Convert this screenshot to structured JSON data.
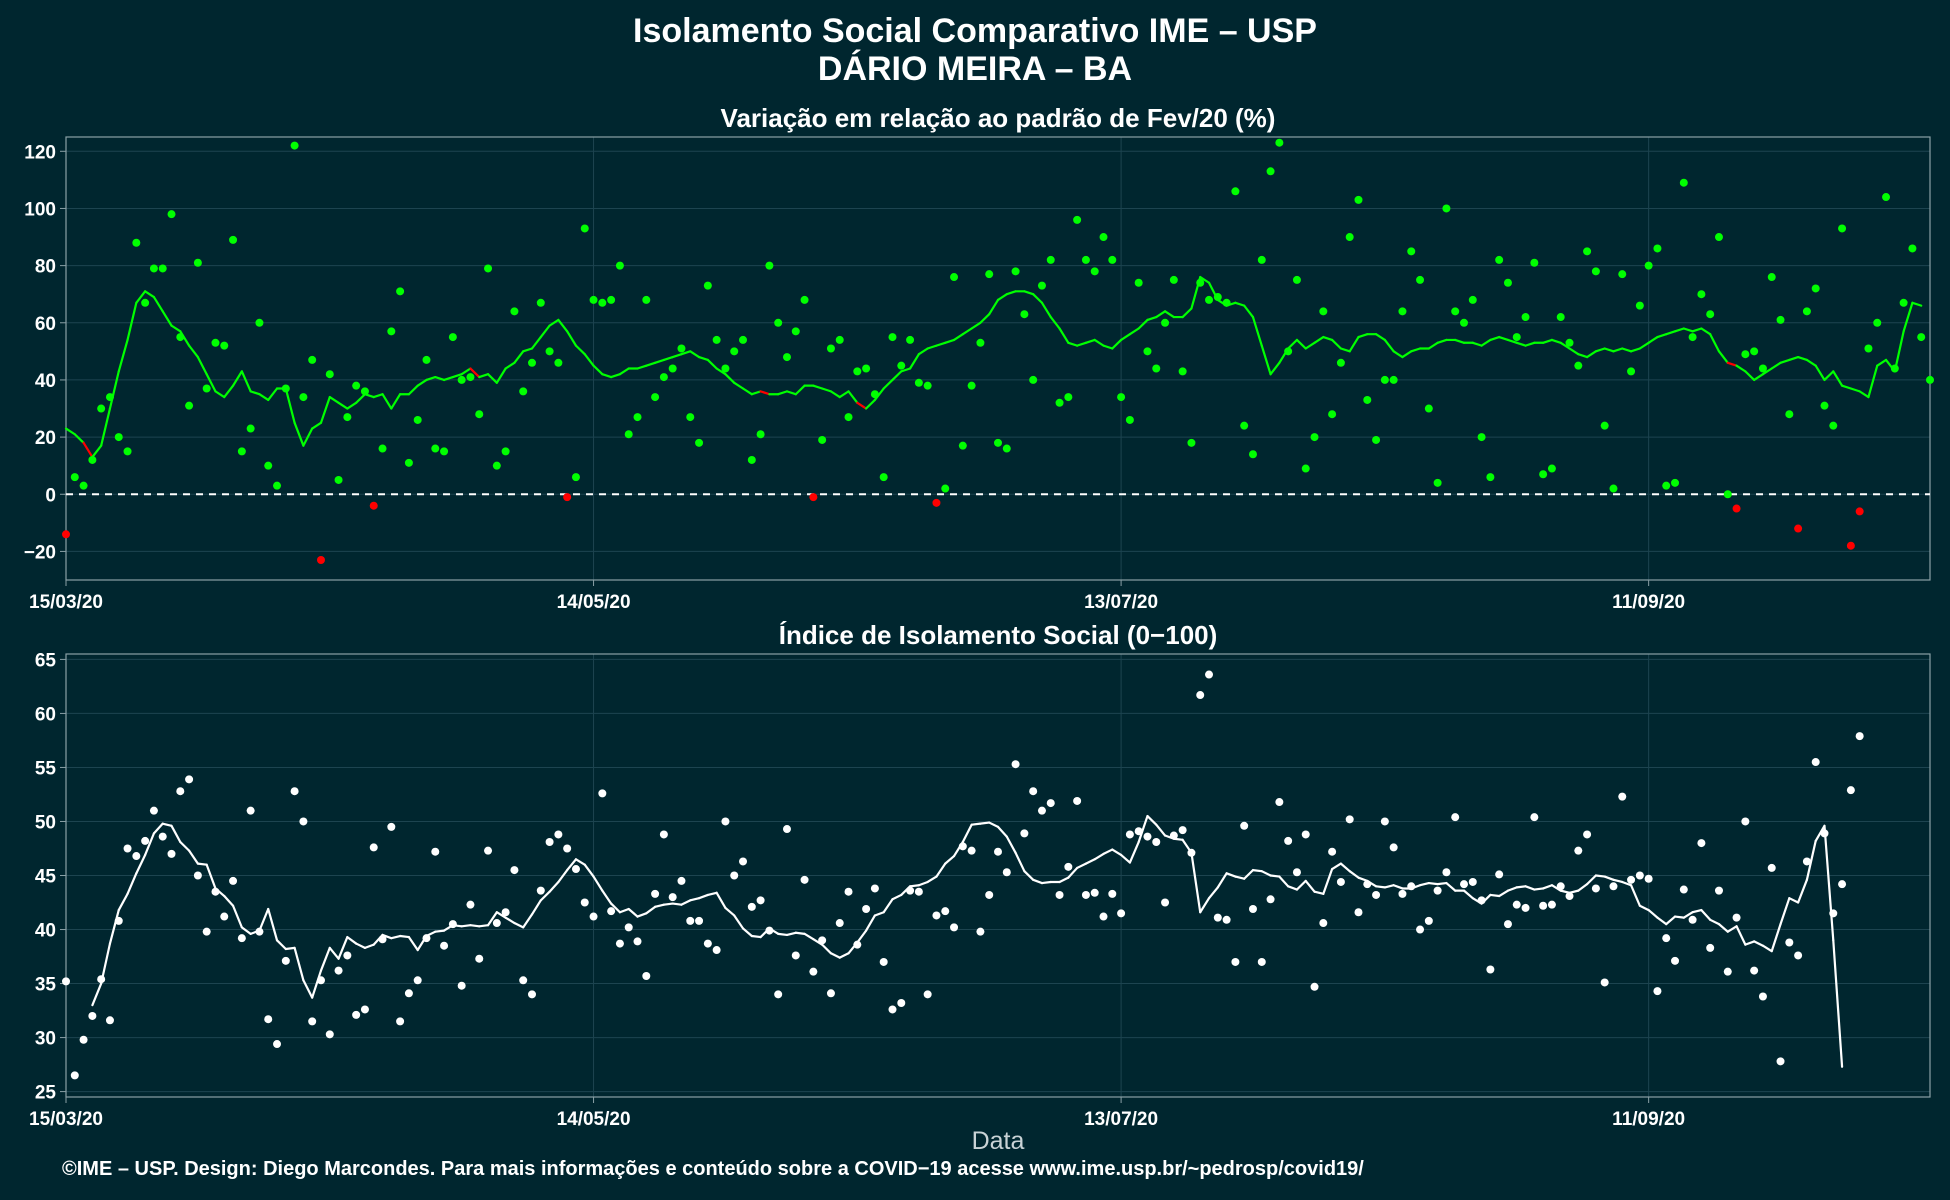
{
  "title": "Isolamento Social Comparativo IME – USP",
  "subtitle": "DÁRIO MEIRA – BA",
  "footer": "©IME – USP. Design: Diego Marcondes. Para mais informações e conteúdo sobre a COVID−19 acesse www.ime.usp.br/~pedrosp/covid19/",
  "colors": {
    "background": "#00262f",
    "positive": "#00ff00",
    "negative": "#ff0000",
    "index": "#ffffff",
    "grid": "#1d4450",
    "axis": "#8aa0a6"
  },
  "chart_data": [
    {
      "type": "scatter",
      "title": "Variação em relação ao padrão de Fev/20 (%)",
      "xlabel": "",
      "ylabel": "",
      "x_tick_labels": [
        "15/03/20",
        "14/05/20",
        "13/07/20",
        "11/09/20"
      ],
      "x_tick_days": [
        0,
        60,
        120,
        180
      ],
      "y_ticks": [
        -20,
        0,
        20,
        40,
        60,
        80,
        100,
        120
      ],
      "xlim": [
        0,
        212
      ],
      "ylim": [
        -30,
        125
      ],
      "reference_line": 0,
      "points": [
        -14,
        6,
        3,
        12,
        30,
        34,
        20,
        15,
        88,
        67,
        79,
        79,
        98,
        55,
        31,
        81,
        37,
        53,
        52,
        89,
        15,
        23,
        60,
        10,
        3,
        37,
        122,
        34,
        47,
        -23,
        42,
        5,
        27,
        38,
        36,
        -4,
        16,
        57,
        71,
        11,
        26,
        47,
        16,
        15,
        55,
        40,
        41,
        28,
        79,
        10,
        15,
        64,
        36,
        46,
        67,
        50,
        46,
        -1,
        6,
        93,
        68,
        67,
        68,
        80,
        21,
        27,
        68,
        34,
        41,
        44,
        51,
        27,
        18,
        73,
        54,
        44,
        50,
        54,
        12,
        21,
        80,
        60,
        48,
        57,
        68,
        -1,
        19,
        51,
        54,
        27,
        43,
        44,
        35,
        6,
        55,
        45,
        54,
        39,
        38,
        -3,
        2,
        76,
        17,
        38,
        53,
        77,
        18,
        16,
        78,
        63,
        40,
        73,
        82,
        32,
        34,
        96,
        82,
        78,
        90,
        82,
        34,
        26,
        74,
        50,
        44,
        60,
        75,
        43,
        18,
        74,
        68,
        69,
        67,
        106,
        24,
        14,
        82,
        113,
        123,
        50,
        75,
        9,
        20,
        64,
        28,
        46,
        90,
        103,
        33,
        19,
        40,
        40,
        64,
        85,
        75,
        30,
        4,
        100,
        64,
        60,
        68,
        20,
        6,
        82,
        74,
        55,
        62,
        81,
        7,
        9,
        62,
        53,
        45,
        85,
        78,
        24,
        2,
        77,
        43,
        66,
        80,
        86,
        3,
        4,
        109,
        55,
        70,
        63,
        90,
        0,
        -5,
        49,
        50,
        44,
        76,
        61,
        28,
        -12,
        64,
        72,
        31,
        24,
        93,
        -18,
        -6,
        51,
        60,
        104,
        44,
        67,
        86,
        55,
        40
      ],
      "moving_average": [
        23,
        21,
        18,
        13,
        17,
        30,
        43,
        54,
        67,
        71,
        69,
        64,
        59,
        57,
        52,
        48,
        42,
        36,
        34,
        38,
        43,
        36,
        35,
        33,
        37,
        37,
        25,
        17,
        23,
        25,
        34,
        32,
        30,
        32,
        35,
        34,
        35,
        30,
        35,
        35,
        38,
        40,
        41,
        40,
        41,
        42,
        44,
        41,
        42,
        39,
        44,
        46,
        50,
        51,
        55,
        59,
        61,
        57,
        52,
        49,
        45,
        42,
        41,
        42,
        44,
        44,
        45,
        46,
        47,
        48,
        49,
        50,
        48,
        47,
        44,
        42,
        39,
        37,
        35,
        36,
        35,
        35,
        36,
        35,
        38,
        38,
        37,
        36,
        34,
        36,
        32,
        30,
        33,
        37,
        40,
        43,
        44,
        49,
        51,
        52,
        53,
        54,
        56,
        58,
        60,
        63,
        68,
        70,
        71,
        71,
        70,
        67,
        62,
        58,
        53,
        52,
        53,
        54,
        52,
        51,
        54,
        56,
        58,
        61,
        62,
        64,
        62,
        62,
        65,
        76,
        74,
        68,
        66,
        67,
        66,
        62,
        52,
        42,
        46,
        51,
        54,
        51,
        53,
        55,
        54,
        51,
        50,
        55,
        56,
        56,
        54,
        50,
        48,
        50,
        51,
        51,
        53,
        54,
        54,
        53,
        53,
        52,
        54,
        55,
        54,
        53,
        52,
        53,
        53,
        54,
        53,
        51,
        49,
        48,
        50,
        51,
        50,
        51,
        50,
        51,
        53,
        55,
        56,
        57,
        58,
        57,
        58,
        56,
        50,
        46,
        45,
        43,
        40,
        42,
        44,
        46,
        47,
        48,
        47,
        45,
        40,
        43,
        38,
        37,
        36,
        34,
        45,
        47,
        43,
        57,
        67,
        66
      ]
    },
    {
      "type": "scatter",
      "title": "Índice de Isolamento Social (0−100)",
      "xlabel": "Data",
      "ylabel": "",
      "x_tick_labels": [
        "15/03/20",
        "14/05/20",
        "13/07/20",
        "11/09/20"
      ],
      "x_tick_days": [
        0,
        60,
        120,
        180
      ],
      "y_ticks": [
        25,
        30,
        35,
        40,
        45,
        50,
        55,
        60,
        65
      ],
      "xlim": [
        0,
        212
      ],
      "ylim": [
        24.5,
        65.5
      ],
      "points": [
        35.2,
        26.5,
        29.8,
        32,
        35.4,
        31.6,
        40.8,
        47.5,
        46.8,
        48.2,
        51,
        48.6,
        47,
        52.8,
        53.9,
        45,
        39.8,
        43.5,
        41.2,
        44.5,
        39.2,
        51,
        39.8,
        31.7,
        29.4,
        37.1,
        52.8,
        50,
        31.5,
        35.3,
        30.3,
        36.2,
        37.6,
        32.1,
        32.6,
        47.6,
        39.1,
        49.5,
        31.5,
        34.1,
        35.3,
        39.2,
        47.2,
        38.5,
        40.5,
        34.8,
        42.3,
        37.3,
        47.3,
        40.6,
        41.6,
        45.5,
        35.3,
        34,
        43.6,
        48.1,
        48.8,
        47.5,
        45.6,
        42.5,
        41.2,
        52.6,
        41.7,
        38.7,
        40.2,
        38.9,
        35.7,
        43.3,
        48.8,
        43,
        44.5,
        40.8,
        40.8,
        38.7,
        38.1,
        50,
        45,
        46.3,
        42.1,
        42.7,
        39.9,
        34,
        49.3,
        37.6,
        44.6,
        36.1,
        39,
        34.1,
        40.6,
        43.5,
        38.6,
        41.9,
        43.8,
        37,
        32.6,
        33.2,
        43.6,
        43.5,
        34,
        41.3,
        41.7,
        40.2,
        47.7,
        47.3,
        39.8,
        43.2,
        47.2,
        45.3,
        55.3,
        48.9,
        52.8,
        51,
        51.7,
        43.2,
        45.8,
        51.9,
        43.2,
        43.4,
        41.2,
        43.3,
        41.5,
        48.8,
        49.1,
        48.6,
        48.1,
        42.5,
        48.7,
        49.2,
        47.1,
        61.7,
        63.6,
        41.1,
        40.9,
        37,
        49.6,
        41.9,
        37,
        42.8,
        51.8,
        48.2,
        45.3,
        48.8,
        34.7,
        40.6,
        47.2,
        44.4,
        50.2,
        41.6,
        44.2,
        43.2,
        50,
        47.6,
        43.3,
        44,
        40,
        40.8,
        43.6,
        45.3,
        50.4,
        44.2,
        44.4,
        42.7,
        36.3,
        45.1,
        40.5,
        42.3,
        42,
        50.4,
        42.2,
        42.3,
        44,
        43.1,
        47.3,
        48.8,
        43.8,
        35.1,
        44,
        52.3,
        44.6,
        45,
        44.7,
        34.3,
        39.2,
        37.1,
        43.7,
        40.9,
        48,
        38.3,
        43.6,
        36.1,
        41.1,
        50,
        36.2,
        33.8,
        45.7,
        27.8,
        38.8,
        37.6,
        46.3,
        55.5,
        48.9,
        41.5,
        44.2,
        52.9,
        57.9
      ],
      "moving_average": [
        null,
        null,
        null,
        33,
        35,
        38.7,
        41.8,
        43.3,
        45.2,
        46.9,
        48.9,
        49.8,
        49.6,
        48.1,
        47.3,
        46.1,
        46,
        43.8,
        43.1,
        42.2,
        40.2,
        39.6,
        39.9,
        41.9,
        39,
        38.2,
        38.3,
        35.3,
        33.7,
        36.2,
        38.3,
        37.3,
        39.3,
        38.7,
        38.3,
        38.6,
        39.5,
        39.2,
        39.4,
        39.3,
        38.1,
        39.4,
        39.8,
        39.9,
        40.4,
        40.3,
        40.4,
        40.3,
        40.4,
        41.6,
        41.1,
        40.6,
        40.2,
        41.4,
        42.7,
        43.5,
        44.4,
        45.5,
        46.5,
        46,
        44.9,
        43.6,
        42.4,
        41.6,
        41.9,
        41.2,
        41.5,
        42.1,
        42.3,
        42.4,
        42.3,
        42.7,
        42.9,
        43.2,
        43.4,
        42,
        41.3,
        40.1,
        39.4,
        39.3,
        40.1,
        39.6,
        39.5,
        39.7,
        39.6,
        39.1,
        38.6,
        37.8,
        37.4,
        37.8,
        38.8,
        39.9,
        41.3,
        41.6,
        42.8,
        43.2,
        44,
        44.1,
        44.4,
        44.9,
        46.1,
        46.8,
        48.1,
        49.7,
        49.8,
        49.9,
        49.5,
        48.6,
        47.1,
        45.4,
        44.6,
        44.3,
        44.4,
        44.4,
        44.8,
        45.7,
        46.1,
        46.5,
        47,
        47.4,
        46.9,
        46.2,
        48.1,
        50.5,
        49.7,
        48.7,
        48.4,
        48.3,
        47.1,
        41.6,
        42.9,
        43.9,
        45.2,
        44.9,
        44.7,
        45.5,
        45.4,
        45,
        44.9,
        44,
        43.7,
        44.5,
        43.5,
        43.3,
        45.6,
        46.1,
        45.4,
        44.8,
        44.5,
        44,
        43.9,
        44.1,
        43.8,
        43.8,
        44.1,
        44.3,
        44.2,
        44.3,
        43.6,
        43.6,
        42.9,
        42.4,
        43.2,
        43.1,
        43.6,
        43.9,
        44,
        43.7,
        43.8,
        44.1,
        43.6,
        43.4,
        43.6,
        44.2,
        45,
        44.9,
        44.6,
        44.4,
        44.1,
        42.2,
        41.8,
        41.1,
        40.5,
        41.2,
        41.1,
        41.6,
        41.8,
        40.9,
        40.5,
        39.8,
        40.3,
        38.6,
        38.9,
        38.5,
        38,
        40.5,
        42.9,
        42.5,
        44.6,
        48.2,
        49.6,
        39,
        27.3
      ]
    }
  ]
}
